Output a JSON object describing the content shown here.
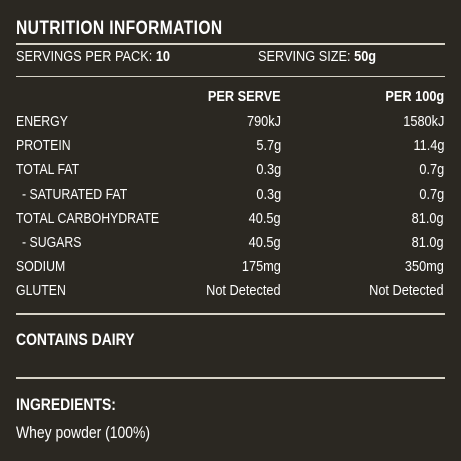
{
  "panel": {
    "title": "NUTRITION INFORMATION",
    "servings_label": "SERVINGS PER PACK:",
    "servings_value": "10",
    "serving_size_label": "SERVING SIZE:",
    "serving_size_value": "50g",
    "columns": {
      "per_serve": "PER SERVE",
      "per_100g": "PER 100g"
    },
    "rows": [
      {
        "name": "ENERGY",
        "per_serve": "790kJ",
        "per_100g": "1580kJ"
      },
      {
        "name": "PROTEIN",
        "per_serve": "5.7g",
        "per_100g": "11.4g"
      },
      {
        "name": "TOTAL FAT",
        "per_serve": "0.3g",
        "per_100g": "0.7g"
      },
      {
        "name": "- SATURATED FAT",
        "per_serve": "0.3g",
        "per_100g": "0.7g"
      },
      {
        "name": "TOTAL CARBOHYDRATE",
        "per_serve": "40.5g",
        "per_100g": "81.0g"
      },
      {
        "name": "- SUGARS",
        "per_serve": "40.5g",
        "per_100g": "81.0g"
      },
      {
        "name": "SODIUM",
        "per_serve": "175mg",
        "per_100g": "350mg"
      },
      {
        "name": "GLUTEN",
        "per_serve": "Not Detected",
        "per_100g": "Not Detected"
      }
    ],
    "contains": "CONTAINS DAIRY",
    "ingredients_title": "INGREDIENTS:",
    "ingredients_text": "Whey powder (100%)"
  },
  "colors": {
    "background": "#2b2822",
    "text": "#ffffff",
    "rule": "#d8d4c8"
  }
}
